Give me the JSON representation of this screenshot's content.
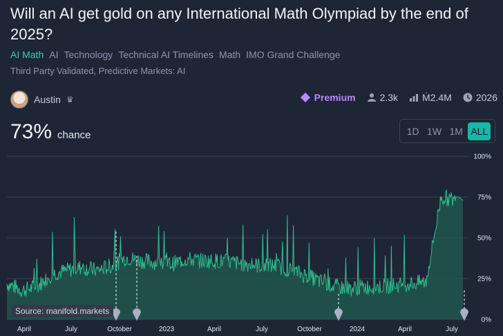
{
  "market": {
    "title": "Will an AI get gold on any International Math Olympiad by the end of 2025?",
    "tags": [
      "AI Math",
      "AI",
      "Technology",
      "Technical AI Timelines",
      "Math",
      "IMO Grand Challenge"
    ],
    "subtags": "Third Party Validated, Predictive Markets: AI",
    "author": "Austin",
    "premium_label": "Premium",
    "traders": "2.3k",
    "volume": "Ṁ2.4M",
    "close_year": "2026",
    "probability": "73%",
    "probability_label": "chance"
  },
  "range_buttons": [
    {
      "label": "1D",
      "active": false
    },
    {
      "label": "1W",
      "active": false
    },
    {
      "label": "1M",
      "active": false
    },
    {
      "label": "ALL",
      "active": true
    }
  ],
  "source_label": "Source: manifold.markets",
  "icons": {
    "premium": "diamond-icon",
    "traders": "person-icon",
    "volume": "bar-chart-icon",
    "close": "clock-icon",
    "author_badge": "crown-icon"
  },
  "colors": {
    "accent": "#2fd3b0",
    "line": "#2fbf8f",
    "fill": "#1f5a4d",
    "premium": "#b788ff",
    "background": "#1e2535"
  },
  "chart_data": {
    "type": "area",
    "y_ticks": [
      "100%",
      "75%",
      "50%",
      "25%",
      "0%"
    ],
    "ylim": [
      0,
      100
    ],
    "x_ticks": [
      "April",
      "July",
      "October",
      "2023",
      "April",
      "July",
      "October",
      "2024",
      "April",
      "July"
    ],
    "points": [
      {
        "x": "2022-03",
        "y": 22
      },
      {
        "x": "2022-04",
        "y": 18
      },
      {
        "x": "2022-05",
        "y": 20
      },
      {
        "x": "2022-06",
        "y": 28
      },
      {
        "x": "2022-07",
        "y": 30
      },
      {
        "x": "2022-08",
        "y": 32
      },
      {
        "x": "2022-09",
        "y": 30
      },
      {
        "x": "2022-10",
        "y": 33
      },
      {
        "x": "2022-11",
        "y": 38
      },
      {
        "x": "2022-12",
        "y": 36
      },
      {
        "x": "2023-01",
        "y": 35
      },
      {
        "x": "2023-02",
        "y": 34
      },
      {
        "x": "2023-03",
        "y": 37
      },
      {
        "x": "2023-04",
        "y": 36
      },
      {
        "x": "2023-05",
        "y": 36
      },
      {
        "x": "2023-06",
        "y": 35
      },
      {
        "x": "2023-07",
        "y": 34
      },
      {
        "x": "2023-08",
        "y": 33
      },
      {
        "x": "2023-09",
        "y": 33
      },
      {
        "x": "2023-10",
        "y": 30
      },
      {
        "x": "2023-11",
        "y": 27
      },
      {
        "x": "2023-12",
        "y": 23
      },
      {
        "x": "2024-01",
        "y": 20
      },
      {
        "x": "2024-02",
        "y": 19
      },
      {
        "x": "2024-03",
        "y": 20
      },
      {
        "x": "2024-04",
        "y": 20
      },
      {
        "x": "2024-05",
        "y": 21
      },
      {
        "x": "2024-06",
        "y": 22
      },
      {
        "x": "2024-07",
        "y": 23
      },
      {
        "x": "2024-07-20",
        "y": 75
      },
      {
        "x": "2024-07-25",
        "y": 73
      }
    ]
  }
}
